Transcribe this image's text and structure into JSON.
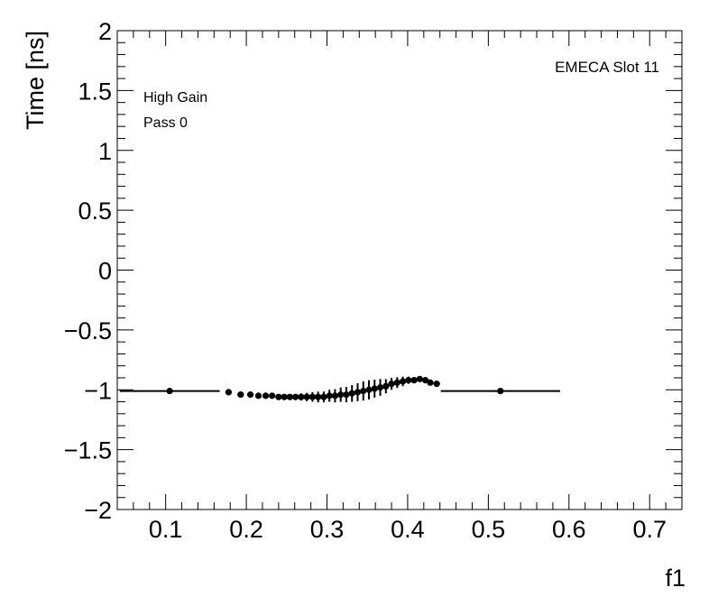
{
  "chart_data": {
    "type": "scatter",
    "title": "",
    "xlabel": "f1",
    "ylabel": "Time [ns]",
    "xlim": [
      0.04,
      0.74
    ],
    "ylim": [
      -2,
      2
    ],
    "x_ticks": [
      0.1,
      0.2,
      0.3,
      0.4,
      0.5,
      0.6,
      0.7
    ],
    "x_tick_labels": [
      "0.1",
      "0.2",
      "0.3",
      "0.4",
      "0.5",
      "0.6",
      "0.7"
    ],
    "y_ticks": [
      -2,
      -1.5,
      -1,
      -0.5,
      0,
      0.5,
      1,
      1.5,
      2
    ],
    "y_tick_labels": [
      "−2",
      "−1.5",
      "−1",
      "−0.5",
      "0",
      "0.5",
      "1",
      "1.5",
      "2"
    ],
    "annotations": [
      "High Gain",
      "Pass 0"
    ],
    "label_right": "EMECA Slot 11",
    "marker_color": "#000000",
    "grid": false,
    "series": [
      {
        "points": [
          {
            "x": 0.105,
            "y": -1.01,
            "xerr": 0.062,
            "yerr": 0.004
          },
          {
            "x": 0.178,
            "y": -1.02,
            "xerr": 0.004,
            "yerr": 0.006
          },
          {
            "x": 0.193,
            "y": -1.04,
            "xerr": 0.004,
            "yerr": 0.006
          },
          {
            "x": 0.205,
            "y": -1.04,
            "xerr": 0.004,
            "yerr": 0.006
          },
          {
            "x": 0.215,
            "y": -1.05,
            "xerr": 0.003,
            "yerr": 0.008
          },
          {
            "x": 0.224,
            "y": -1.05,
            "xerr": 0.003,
            "yerr": 0.008
          },
          {
            "x": 0.232,
            "y": -1.05,
            "xerr": 0.003,
            "yerr": 0.01
          },
          {
            "x": 0.24,
            "y": -1.06,
            "xerr": 0.003,
            "yerr": 0.012
          },
          {
            "x": 0.247,
            "y": -1.06,
            "xerr": 0.003,
            "yerr": 0.015
          },
          {
            "x": 0.254,
            "y": -1.06,
            "xerr": 0.003,
            "yerr": 0.02
          },
          {
            "x": 0.261,
            "y": -1.06,
            "xerr": 0.003,
            "yerr": 0.025
          },
          {
            "x": 0.268,
            "y": -1.06,
            "xerr": 0.003,
            "yerr": 0.03
          },
          {
            "x": 0.275,
            "y": -1.06,
            "xerr": 0.003,
            "yerr": 0.035
          },
          {
            "x": 0.282,
            "y": -1.06,
            "xerr": 0.003,
            "yerr": 0.04
          },
          {
            "x": 0.289,
            "y": -1.06,
            "xerr": 0.003,
            "yerr": 0.045
          },
          {
            "x": 0.296,
            "y": -1.06,
            "xerr": 0.003,
            "yerr": 0.045
          },
          {
            "x": 0.303,
            "y": -1.05,
            "xerr": 0.003,
            "yerr": 0.05
          },
          {
            "x": 0.31,
            "y": -1.05,
            "xerr": 0.003,
            "yerr": 0.055
          },
          {
            "x": 0.317,
            "y": -1.04,
            "xerr": 0.003,
            "yerr": 0.06
          },
          {
            "x": 0.324,
            "y": -1.04,
            "xerr": 0.003,
            "yerr": 0.065
          },
          {
            "x": 0.331,
            "y": -1.03,
            "xerr": 0.003,
            "yerr": 0.07
          },
          {
            "x": 0.338,
            "y": -1.02,
            "xerr": 0.003,
            "yerr": 0.075
          },
          {
            "x": 0.345,
            "y": -1.01,
            "xerr": 0.003,
            "yerr": 0.08
          },
          {
            "x": 0.352,
            "y": -1.0,
            "xerr": 0.003,
            "yerr": 0.08
          },
          {
            "x": 0.359,
            "y": -0.99,
            "xerr": 0.003,
            "yerr": 0.075
          },
          {
            "x": 0.366,
            "y": -0.98,
            "xerr": 0.003,
            "yerr": 0.07
          },
          {
            "x": 0.373,
            "y": -0.97,
            "xerr": 0.003,
            "yerr": 0.06
          },
          {
            "x": 0.38,
            "y": -0.95,
            "xerr": 0.003,
            "yerr": 0.05
          },
          {
            "x": 0.387,
            "y": -0.94,
            "xerr": 0.003,
            "yerr": 0.045
          },
          {
            "x": 0.394,
            "y": -0.93,
            "xerr": 0.003,
            "yerr": 0.04
          },
          {
            "x": 0.401,
            "y": -0.92,
            "xerr": 0.003,
            "yerr": 0.03
          },
          {
            "x": 0.408,
            "y": -0.92,
            "xerr": 0.003,
            "yerr": 0.02
          },
          {
            "x": 0.415,
            "y": -0.91,
            "xerr": 0.003,
            "yerr": 0.015
          },
          {
            "x": 0.422,
            "y": -0.92,
            "xerr": 0.003,
            "yerr": 0.01
          },
          {
            "x": 0.428,
            "y": -0.94,
            "xerr": 0.003,
            "yerr": 0.008
          },
          {
            "x": 0.436,
            "y": -0.95,
            "xerr": 0.004,
            "yerr": 0.006
          },
          {
            "x": 0.515,
            "y": -1.01,
            "xerr": 0.074,
            "yerr": 0.004
          }
        ]
      }
    ]
  }
}
